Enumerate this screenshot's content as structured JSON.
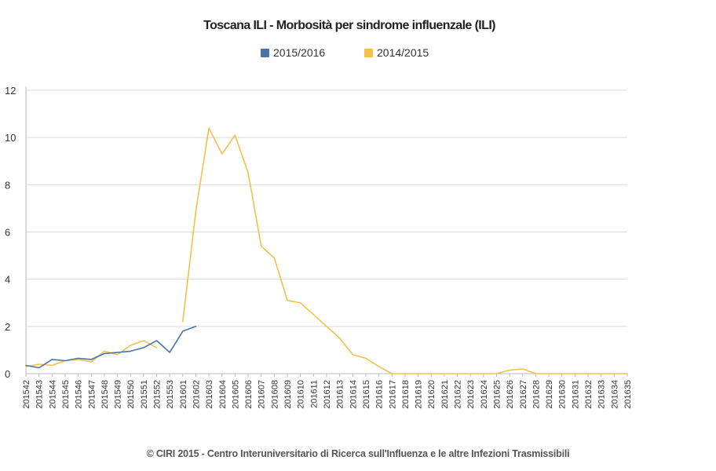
{
  "chart_data": {
    "type": "line",
    "title": "Toscana ILI - Morbosità per sindrome influenzale (ILI)",
    "footer": "© CIRI 2015 - Centro Interuniversitario di Ricerca sull'Influenza e le altre Infezioni Trasmissibili",
    "xlabel": "",
    "ylabel": "",
    "ylim": [
      0,
      12
    ],
    "yticks": [
      "0",
      "2",
      "4",
      "6",
      "8",
      "10",
      "12"
    ],
    "grid": true,
    "legend_position": "top-center",
    "categories": [
      "201542",
      "201543",
      "201544",
      "201545",
      "201546",
      "201547",
      "201548",
      "201549",
      "201550",
      "201551",
      "201552",
      "201553",
      "201601",
      "201602",
      "201603",
      "201604",
      "201605",
      "201606",
      "201607",
      "201608",
      "201609",
      "201610",
      "201611",
      "201612",
      "201613",
      "201614",
      "201615",
      "201616",
      "201617",
      "201618",
      "201619",
      "201620",
      "201621",
      "201622",
      "201623",
      "201624",
      "201625",
      "201626",
      "201627",
      "201628",
      "201629",
      "201630",
      "201631",
      "201632",
      "201633",
      "201634",
      "201635"
    ],
    "series": [
      {
        "name": "2015/2016",
        "color": "#4a74a8",
        "values": [
          0.35,
          0.25,
          0.6,
          0.55,
          0.65,
          0.6,
          0.85,
          0.9,
          0.95,
          1.1,
          1.4,
          0.9,
          1.8,
          2.0,
          null,
          null,
          null,
          null,
          null,
          null,
          null,
          null,
          null,
          null,
          null,
          null,
          null,
          null,
          null,
          null,
          null,
          null,
          null,
          null,
          null,
          null,
          null,
          null,
          null,
          null,
          null,
          null,
          null,
          null,
          null,
          null,
          null
        ]
      },
      {
        "name": "2014/2015",
        "color": "#f4c04a",
        "values": [
          0.3,
          0.4,
          0.35,
          0.55,
          0.6,
          0.5,
          0.95,
          0.8,
          1.2,
          1.4,
          1.1,
          null,
          2.2,
          6.9,
          10.4,
          9.3,
          10.1,
          8.5,
          5.4,
          4.9,
          3.1,
          3.0,
          2.5,
          2.0,
          1.5,
          0.8,
          0.65,
          0.3,
          0.0,
          0.0,
          0.0,
          0.0,
          0.0,
          0.0,
          0.0,
          0.0,
          0.0,
          0.15,
          0.2,
          0.0,
          0.0,
          0.0,
          0.0,
          0.0,
          0.0,
          0.0,
          0.0
        ]
      }
    ]
  }
}
